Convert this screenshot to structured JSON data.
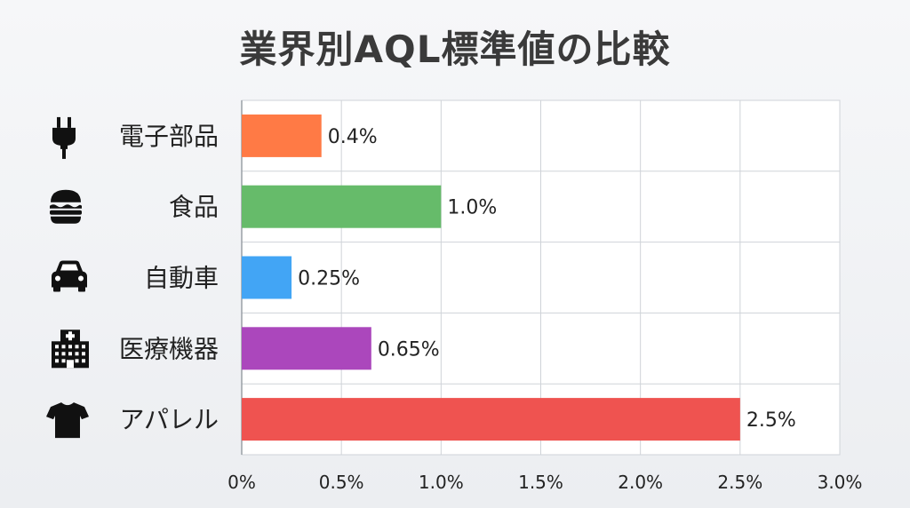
{
  "chart_data": {
    "type": "bar",
    "orientation": "horizontal",
    "title": "業界別AQL標準値の比較",
    "xlabel": "",
    "ylabel": "",
    "xlim": [
      0,
      3.0
    ],
    "grid": true,
    "categories": [
      "電子部品",
      "食品",
      "自動車",
      "医療機器",
      "アパレル"
    ],
    "values": [
      0.4,
      1.0,
      0.25,
      0.65,
      2.5
    ],
    "value_labels": [
      "0.4%",
      "1.0%",
      "0.25%",
      "0.65%",
      "2.5%"
    ],
    "bar_colors": [
      "#ff7a45",
      "#66bb6a",
      "#42a5f5",
      "#ab47bc",
      "#ef5350"
    ],
    "icons": [
      "plug-icon",
      "burger-icon",
      "car-icon",
      "hospital-icon",
      "tshirt-icon"
    ],
    "x_ticks": [
      0,
      0.5,
      1.0,
      1.5,
      2.0,
      2.5,
      3.0
    ],
    "x_tick_labels": [
      "0%",
      "0.5%",
      "1.0%",
      "1.5%",
      "2.0%",
      "2.5%",
      "3.0%"
    ]
  }
}
